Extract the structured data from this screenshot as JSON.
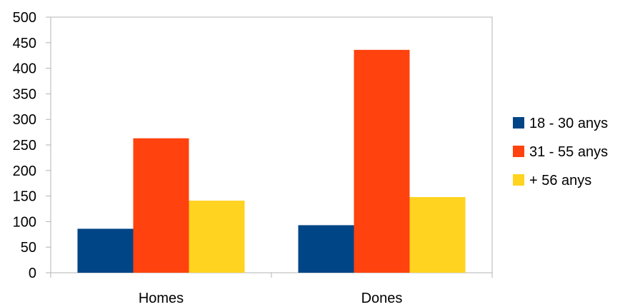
{
  "chart_data": {
    "type": "bar",
    "title": "",
    "xlabel": "",
    "ylabel": "",
    "categories": [
      "Homes",
      "Dones"
    ],
    "series": [
      {
        "name": " 18 - 30 anys",
        "values": [
          86,
          93
        ],
        "color": "#004586"
      },
      {
        "name": "31 - 55 anys",
        "values": [
          263,
          436
        ],
        "color": "#ff420e"
      },
      {
        "name": "+ 56 anys",
        "values": [
          141,
          148
        ],
        "color": "#ffd320"
      }
    ],
    "ylim": [
      0,
      500
    ],
    "yticks": [
      0,
      50,
      100,
      150,
      200,
      250,
      300,
      350,
      400,
      450,
      500
    ],
    "grid": false,
    "legend_position": "right"
  }
}
